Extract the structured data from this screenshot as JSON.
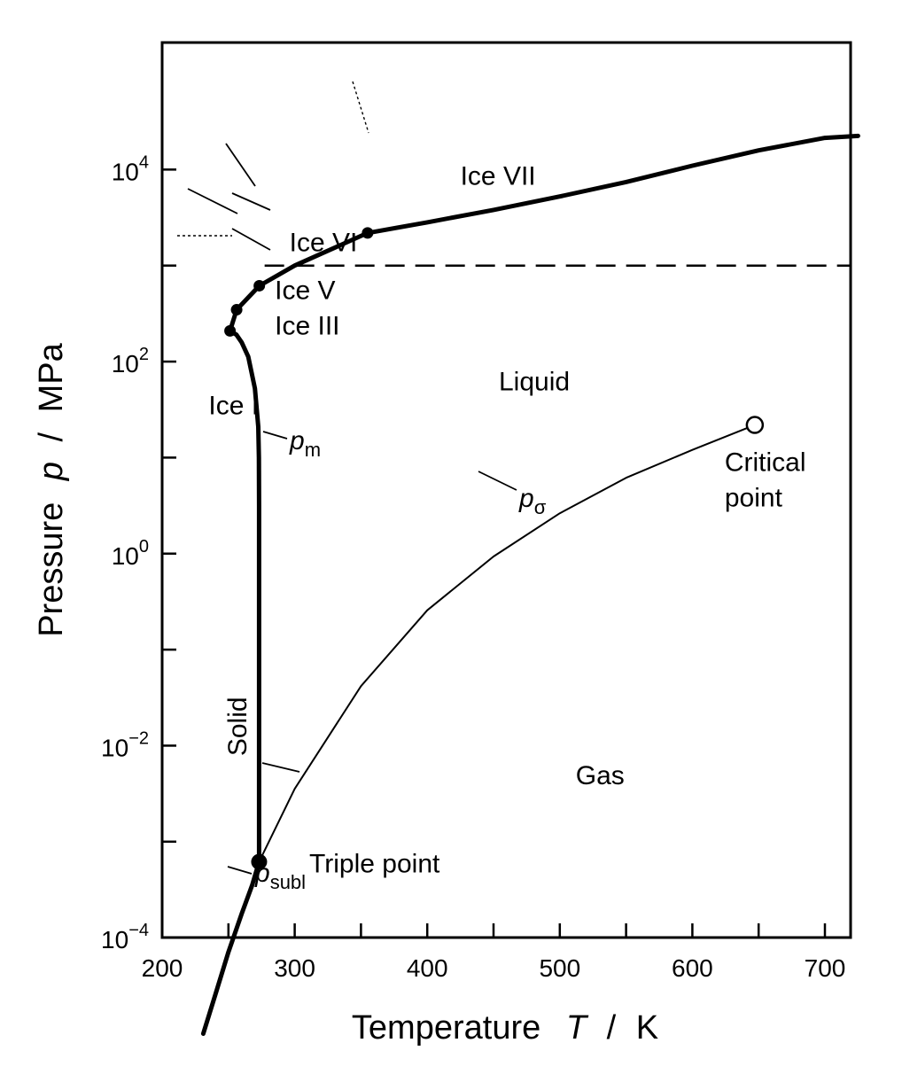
{
  "chart_data": {
    "type": "line",
    "xlabel": {
      "text": "Temperature",
      "symbol": "T",
      "unit": "K"
    },
    "ylabel": {
      "text": "Pressure",
      "symbol": "p",
      "unit": "MPa"
    },
    "x_range": [
      200,
      725
    ],
    "y_range_log10": [
      -5,
      4.35
    ],
    "y_scale": "log",
    "x_ticks": [
      {
        "value": 200,
        "label": "200"
      },
      {
        "value": 250,
        "label": ""
      },
      {
        "value": 300,
        "label": "300"
      },
      {
        "value": 350,
        "label": ""
      },
      {
        "value": 400,
        "label": "400"
      },
      {
        "value": 450,
        "label": ""
      },
      {
        "value": 500,
        "label": "500"
      },
      {
        "value": 550,
        "label": ""
      },
      {
        "value": 600,
        "label": "600"
      },
      {
        "value": 650,
        "label": ""
      },
      {
        "value": 700,
        "label": "700"
      }
    ],
    "y_ticks": [
      {
        "exp": -4,
        "label_base": "10",
        "label_exp": "−4"
      },
      {
        "exp": -3,
        "label_base": "",
        "label_exp": ""
      },
      {
        "exp": -2,
        "label_base": "10",
        "label_exp": "−2"
      },
      {
        "exp": -1,
        "label_base": "",
        "label_exp": ""
      },
      {
        "exp": 0,
        "label_base": "10",
        "label_exp": "0"
      },
      {
        "exp": 1,
        "label_base": "",
        "label_exp": ""
      },
      {
        "exp": 2,
        "label_base": "10",
        "label_exp": "2"
      },
      {
        "exp": 3,
        "label_base": "",
        "label_exp": ""
      },
      {
        "exp": 4,
        "label_base": "10",
        "label_exp": "4"
      }
    ],
    "series": [
      {
        "name": "p_subl",
        "label": {
          "base": "p",
          "sub": "subl"
        },
        "width": "thick",
        "points": [
          [
            231,
            -5.0
          ],
          [
            240,
            -4.6
          ],
          [
            250,
            -4.15
          ],
          [
            260,
            -3.75
          ],
          [
            268,
            -3.45
          ],
          [
            273.16,
            -3.21
          ]
        ]
      },
      {
        "name": "p_sigma",
        "label": {
          "base": "p",
          "sub": "σ"
        },
        "width": "thin",
        "points": [
          [
            273.16,
            -3.21
          ],
          [
            300,
            -2.45
          ],
          [
            350,
            -1.38
          ],
          [
            400,
            -0.59
          ],
          [
            450,
            -0.03
          ],
          [
            500,
            0.42
          ],
          [
            550,
            0.79
          ],
          [
            600,
            1.08
          ],
          [
            647.1,
            1.34
          ]
        ]
      },
      {
        "name": "p_m",
        "label": {
          "base": "p",
          "sub": "m"
        },
        "width": "thick",
        "points": [
          [
            273.16,
            -3.21
          ],
          [
            273.16,
            -1.0
          ],
          [
            273.1,
            0.5
          ],
          [
            273.0,
            1.0
          ],
          [
            272.5,
            1.32
          ],
          [
            270,
            1.72
          ],
          [
            265,
            2.05
          ],
          [
            260,
            2.2
          ],
          [
            256,
            2.28
          ],
          [
            251.2,
            2.32
          ]
        ]
      },
      {
        "name": "ice-boundary",
        "width": "thick",
        "points": [
          [
            251.2,
            2.32
          ],
          [
            256.2,
            2.54
          ],
          [
            273.3,
            2.79
          ],
          [
            300,
            3.0
          ],
          [
            355,
            3.34
          ],
          [
            400,
            3.45
          ],
          [
            450,
            3.58
          ],
          [
            500,
            3.72
          ],
          [
            550,
            3.87
          ],
          [
            600,
            4.04
          ],
          [
            650,
            4.2
          ],
          [
            700,
            4.33
          ],
          [
            725,
            4.35
          ]
        ]
      }
    ],
    "points": [
      {
        "name": "Triple point",
        "x": 273.16,
        "log10_p": -3.21,
        "style": "filled-large"
      },
      {
        "name": "Critical point",
        "x": 647.1,
        "log10_p": 1.34,
        "style": "open"
      },
      {
        "name": "Ice III/V/liquid",
        "x": 251.2,
        "log10_p": 2.32,
        "style": "filled"
      },
      {
        "name": "Ice V/VI/liquid",
        "x": 256.2,
        "log10_p": 2.54,
        "style": "filled"
      },
      {
        "name": "Ice VI/liquid",
        "x": 273.3,
        "log10_p": 2.79,
        "style": "filled"
      },
      {
        "name": "Ice VI/VII/liquid",
        "x": 355,
        "log10_p": 3.34,
        "style": "filled"
      }
    ],
    "dashed_line": {
      "log10_p": 3.0
    },
    "region_labels": [
      {
        "text": "Ice VII",
        "x": 425,
        "log10_p": 3.84
      },
      {
        "text": "Ice VI",
        "x": 296,
        "log10_p": 3.15
      },
      {
        "text": "Ice V",
        "x": 285,
        "log10_p": 2.65
      },
      {
        "text": "Ice III",
        "x": 285,
        "log10_p": 2.28
      },
      {
        "text": "Liquid",
        "x": 454,
        "log10_p": 1.7
      },
      {
        "text": "Ice I",
        "x": 235,
        "log10_p": 1.45
      },
      {
        "text": "Gas",
        "x": 512,
        "log10_p": -2.4
      },
      {
        "text": "Triple point",
        "x": 311,
        "log10_p": -3.32
      }
    ],
    "critical_label": [
      "Critical",
      "point"
    ],
    "solid_label": "Solid"
  }
}
